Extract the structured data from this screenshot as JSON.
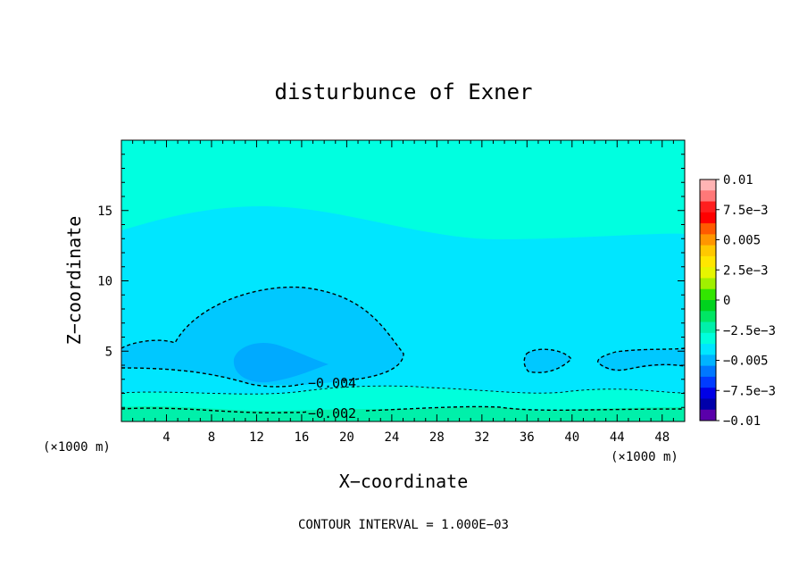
{
  "chart_data": {
    "type": "contour",
    "title": "disturbunce of Exner",
    "xlabel": "X−coordinate",
    "ylabel": "Z−coordinate",
    "x_unit_left": "(×1000 m)",
    "x_unit_right": "(×1000 m)",
    "footer": "CONTOUR INTERVAL = 1.000E−03",
    "xlim": [
      0,
      50
    ],
    "ylim": [
      0,
      20
    ],
    "x_ticks": [
      4,
      8,
      12,
      16,
      20,
      24,
      28,
      32,
      36,
      40,
      44,
      48
    ],
    "y_ticks": [
      5,
      10,
      15
    ],
    "x_tick_labels": [
      "4",
      "8",
      "12",
      "16",
      "20",
      "24",
      "28",
      "32",
      "36",
      "40",
      "44",
      "48"
    ],
    "y_tick_labels": [
      "5",
      "10",
      "15"
    ],
    "contour_interval": 0.001,
    "colorbar": {
      "range": [
        -0.01,
        0.01
      ],
      "labels": [
        "0.01",
        "7.5e−3",
        "0.005",
        "2.5e−3",
        "0",
        "−2.5e−3",
        "−0.005",
        "−7.5e−3",
        "−0.01"
      ],
      "colors_top_to_bottom": [
        "#ffb4b4",
        "#ff7878",
        "#ff1e1e",
        "#ff0000",
        "#ff5a00",
        "#ff9600",
        "#ffc800",
        "#ffe600",
        "#e6f500",
        "#a0f000",
        "#32e600",
        "#00d21e",
        "#00e664",
        "#00f0aa",
        "#00ffdc",
        "#00e6ff",
        "#00b4ff",
        "#0078ff",
        "#003cff",
        "#0000e6",
        "#0000aa",
        "#5a00aa"
      ]
    },
    "regions": [
      {
        "level": "-0.001 to 0",
        "color": "#00f0aa",
        "x": [
          0,
          50
        ],
        "z": [
          0,
          1.2
        ]
      },
      {
        "level": "-0.002 to -0.001",
        "color": "#00ffdc",
        "x": [
          0,
          50
        ],
        "z": [
          1.2,
          2.5
        ]
      },
      {
        "level": "-0.003 to -0.002",
        "color": "#00e6ff",
        "x": [
          0,
          50
        ],
        "z": [
          2.5,
          20
        ]
      },
      {
        "level": "-0.001 to 0",
        "color": "#00ffe0",
        "x": [
          0,
          50
        ],
        "z": [
          13.3,
          20
        ]
      },
      {
        "level": "-0.004 to -0.003",
        "color": "#00c8ff",
        "x": [
          0,
          24.8
        ],
        "z": [
          2.7,
          9.6
        ]
      },
      {
        "level": "-0.004 to -0.003",
        "color": "#00c8ff",
        "x": [
          35.5,
          38.4
        ],
        "z": [
          3.5,
          5.2
        ]
      },
      {
        "level": "-0.004 to -0.003",
        "color": "#00c8ff",
        "x": [
          41.7,
          50
        ],
        "z": [
          4.0,
          5.3
        ]
      },
      {
        "level": "-0.005 to -0.004",
        "color": "#00aaff",
        "x": [
          9.9,
          17.6
        ],
        "z": [
          3.0,
          5.6
        ]
      }
    ],
    "contour_labels": [
      {
        "text": "−0.004",
        "x": 19.7,
        "z": 2.6
      },
      {
        "text": "−0.002",
        "x": 19.7,
        "z": 0.5
      }
    ]
  }
}
